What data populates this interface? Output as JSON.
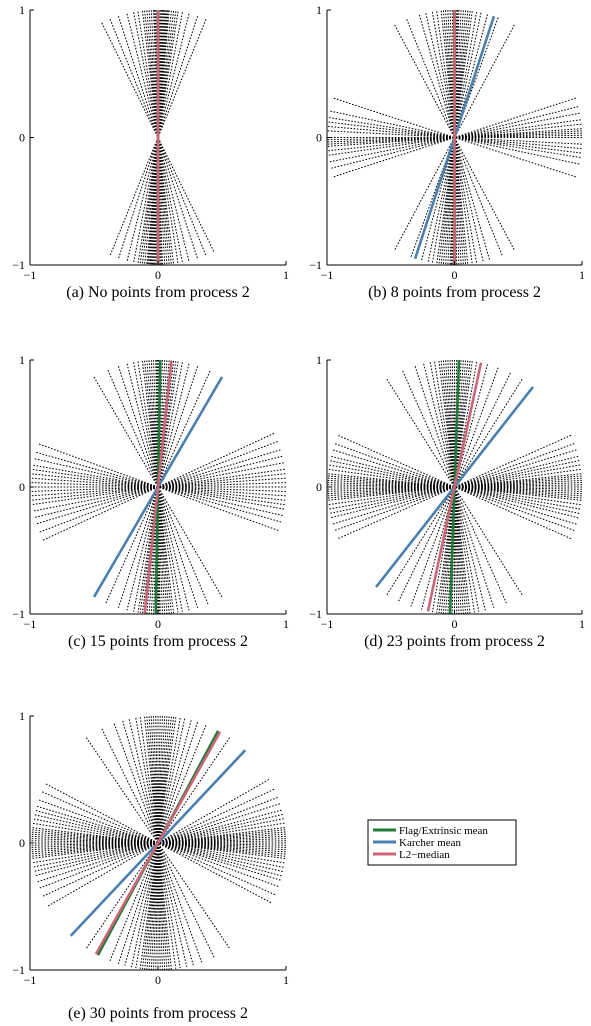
{
  "colors": {
    "flag": "#1e7b3a",
    "karcher": "#4a7fb0",
    "l2": "#cc6677",
    "samples": "#000000"
  },
  "legend": {
    "placement": "right-of-panel-e",
    "entries": [
      {
        "key": "flag",
        "label": "Flag/Extrinsic mean"
      },
      {
        "key": "karcher",
        "label": "Karcher mean"
      },
      {
        "key": "l2",
        "label": "L2−median"
      }
    ]
  },
  "chart_data": [
    {
      "type": "line",
      "caption": "(a) No points from process 2",
      "xlim": [
        -1,
        1
      ],
      "ylim": [
        -1,
        1
      ],
      "xticks": [
        "−1",
        "0",
        "1"
      ],
      "yticks": [
        "−1",
        "0",
        "1"
      ],
      "sample_line_angles_deg": [
        68,
        72,
        76,
        79,
        81,
        82,
        83,
        84,
        85,
        85.5,
        86,
        86.5,
        87,
        87.5,
        88,
        88.5,
        89,
        89.5,
        90,
        90.5,
        91,
        91.5,
        92,
        93,
        94,
        95,
        96,
        97,
        99,
        101,
        104,
        108,
        112,
        116
      ],
      "mean_lines": [
        {
          "key": "flag",
          "angle_deg": 90
        },
        {
          "key": "karcher",
          "angle_deg": 90
        },
        {
          "key": "l2",
          "angle_deg": 90
        }
      ]
    },
    {
      "type": "line",
      "caption": "(b) 8 points from process 2",
      "xlim": [
        -1,
        1
      ],
      "ylim": [
        -1,
        1
      ],
      "xticks": [
        "−1",
        "0",
        "1"
      ],
      "yticks": [
        "−1",
        "0",
        "1"
      ],
      "sample_line_angles_deg": [
        62,
        70,
        75,
        78,
        80,
        82,
        83,
        84,
        85,
        86,
        87,
        88,
        88.5,
        89,
        89.5,
        90,
        90.5,
        91,
        92,
        93,
        94,
        95,
        96,
        98,
        100,
        103,
        106,
        112,
        118,
        -12,
        -7,
        -3,
        0,
        2,
        4,
        6,
        11,
        18,
        -18,
        -9,
        -5,
        1,
        3,
        8,
        14
      ],
      "mean_lines": [
        {
          "key": "flag",
          "angle_deg": 90
        },
        {
          "key": "karcher",
          "angle_deg": 72
        },
        {
          "key": "l2",
          "angle_deg": 90
        }
      ]
    },
    {
      "type": "line",
      "caption": "(c) 15 points from process 2",
      "xlim": [
        -1,
        1
      ],
      "ylim": [
        -1,
        1
      ],
      "xticks": [
        "−1",
        "0",
        "1"
      ],
      "yticks": [
        "−1",
        "0",
        "1"
      ],
      "sample_line_angles_deg": [
        60,
        66,
        72,
        76,
        79,
        81,
        82,
        83,
        84,
        85,
        86,
        87,
        88,
        89,
        89.5,
        90,
        90.5,
        91,
        92,
        93,
        94,
        95,
        96,
        97,
        99,
        101,
        104,
        108,
        113,
        120,
        -20,
        -16,
        -13,
        -10,
        -8,
        -6,
        -4,
        -2,
        0,
        2,
        4,
        6,
        8,
        11,
        14,
        17,
        21,
        25
      ],
      "mean_lines": [
        {
          "key": "flag",
          "angle_deg": 89
        },
        {
          "key": "karcher",
          "angle_deg": 60
        },
        {
          "key": "l2",
          "angle_deg": 84
        }
      ]
    },
    {
      "type": "line",
      "caption": "(d) 23 points from process 2",
      "xlim": [
        -1,
        1
      ],
      "ylim": [
        -1,
        1
      ],
      "xticks": [
        "−1",
        "0",
        "1"
      ],
      "yticks": [
        "−1",
        "0",
        "1"
      ],
      "sample_line_angles_deg": [
        58,
        64,
        70,
        75,
        78,
        80,
        82,
        83,
        84,
        85,
        86,
        87,
        88,
        89,
        90,
        91,
        92,
        93,
        94,
        95,
        96,
        97,
        99,
        101,
        104,
        108,
        114,
        122,
        -24,
        -20,
        -17,
        -14,
        -12,
        -10,
        -8,
        -6,
        -5,
        -4,
        -3,
        -2,
        -1,
        0,
        1,
        2,
        3,
        4,
        5,
        6,
        8,
        10,
        12,
        14,
        17,
        20,
        24
      ],
      "mean_lines": [
        {
          "key": "flag",
          "angle_deg": 88
        },
        {
          "key": "karcher",
          "angle_deg": 52
        },
        {
          "key": "l2",
          "angle_deg": 78
        }
      ]
    },
    {
      "type": "line",
      "caption": "(e) 30 points from process 2",
      "xlim": [
        -1,
        1
      ],
      "ylim": [
        -1,
        1
      ],
      "xticks": [
        "−1",
        "0",
        "1"
      ],
      "yticks": [
        "−1",
        "0",
        "1"
      ],
      "sample_line_angles_deg": [
        56,
        62,
        68,
        72,
        75,
        78,
        80,
        82,
        83,
        84,
        85,
        86,
        87,
        88,
        89,
        90,
        91,
        92,
        93,
        94,
        95,
        96,
        98,
        100,
        103,
        106,
        110,
        116,
        124,
        -28,
        -24,
        -20,
        -17,
        -15,
        -13,
        -11,
        -9,
        -7,
        -6,
        -5,
        -4,
        -3,
        -2,
        -1,
        0,
        1,
        2,
        3,
        4,
        5,
        6,
        7,
        9,
        11,
        13,
        15,
        18,
        21,
        25,
        30
      ],
      "mean_lines": [
        {
          "key": "flag",
          "angle_deg": 62
        },
        {
          "key": "karcher",
          "angle_deg": 47
        },
        {
          "key": "l2",
          "angle_deg": 61
        }
      ]
    }
  ]
}
